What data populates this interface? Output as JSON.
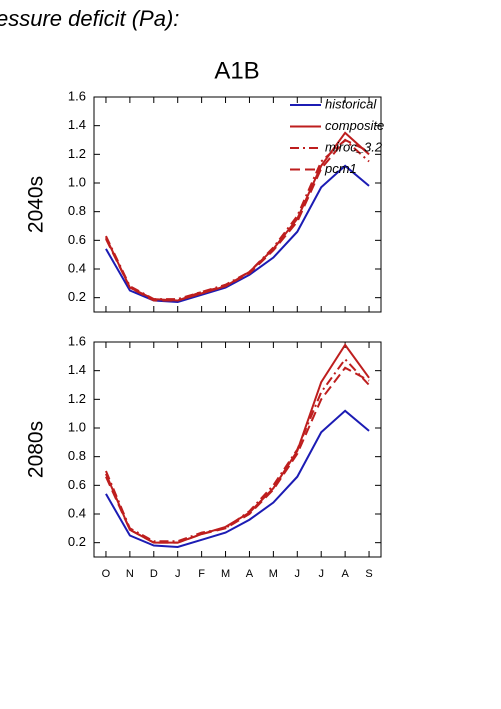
{
  "title": "essure deficit (Pa):",
  "chart_data": [
    {
      "type": "line",
      "title": "A1B",
      "ylabel": "2040s",
      "show_xticklabels": false,
      "legend": "upper right",
      "categories": [
        "O",
        "N",
        "D",
        "J",
        "F",
        "M",
        "A",
        "M",
        "J",
        "J",
        "A",
        "S"
      ],
      "ylim": [
        0.1,
        1.6
      ],
      "yticks": [
        0.2,
        0.4,
        0.6,
        0.8,
        {
          "value": 1,
          "label": "1.0"
        },
        1.2,
        1.4,
        1.6
      ],
      "series": [
        {
          "name": "historical",
          "color": "#1c1cb4",
          "dash": "solid",
          "values": [
            0.54,
            0.25,
            0.18,
            0.17,
            0.22,
            0.27,
            0.36,
            0.48,
            0.66,
            0.97,
            1.12,
            0.98
          ]
        },
        {
          "name": "composite",
          "color": "#be1e1e",
          "dash": "solid",
          "values": [
            0.62,
            0.27,
            0.19,
            0.18,
            0.23,
            0.28,
            0.38,
            0.54,
            0.75,
            1.12,
            1.35,
            1.2
          ]
        },
        {
          "name": "miroc_3.2",
          "color": "#be1e1e",
          "dash": "dashdot",
          "values": [
            0.63,
            0.28,
            0.19,
            0.19,
            0.24,
            0.29,
            0.38,
            0.55,
            0.77,
            1.15,
            1.3,
            1.15
          ]
        },
        {
          "name": "pcm1",
          "color": "#be1e1e",
          "dash": "dash",
          "values": [
            0.61,
            0.27,
            0.18,
            0.18,
            0.24,
            0.28,
            0.37,
            0.53,
            0.73,
            1.1,
            1.3,
            1.22
          ]
        }
      ]
    },
    {
      "type": "line",
      "ylabel": "2080s",
      "show_xticklabels": true,
      "categories": [
        "O",
        "N",
        "D",
        "J",
        "F",
        "M",
        "A",
        "M",
        "J",
        "J",
        "A",
        "S"
      ],
      "ylim": [
        0.1,
        1.6
      ],
      "yticks": [
        0.2,
        0.4,
        0.6,
        0.8,
        {
          "value": 1,
          "label": "1.0"
        },
        1.2,
        1.4,
        1.6
      ],
      "series": [
        {
          "name": "historical",
          "color": "#1c1cb4",
          "dash": "solid",
          "values": [
            0.54,
            0.25,
            0.18,
            0.17,
            0.22,
            0.27,
            0.36,
            0.48,
            0.66,
            0.97,
            1.12,
            0.98
          ]
        },
        {
          "name": "composite",
          "color": "#be1e1e",
          "dash": "solid",
          "values": [
            0.68,
            0.29,
            0.2,
            0.2,
            0.26,
            0.31,
            0.41,
            0.58,
            0.84,
            1.32,
            1.58,
            1.35
          ]
        },
        {
          "name": "miroc_3.2",
          "color": "#be1e1e",
          "dash": "dashdot",
          "values": [
            0.7,
            0.3,
            0.21,
            0.21,
            0.27,
            0.3,
            0.42,
            0.6,
            0.85,
            1.25,
            1.48,
            1.3
          ]
        },
        {
          "name": "pcm1",
          "color": "#be1e1e",
          "dash": "dash",
          "values": [
            0.66,
            0.29,
            0.2,
            0.2,
            0.26,
            0.3,
            0.4,
            0.57,
            0.82,
            1.2,
            1.42,
            1.33
          ]
        }
      ]
    }
  ]
}
